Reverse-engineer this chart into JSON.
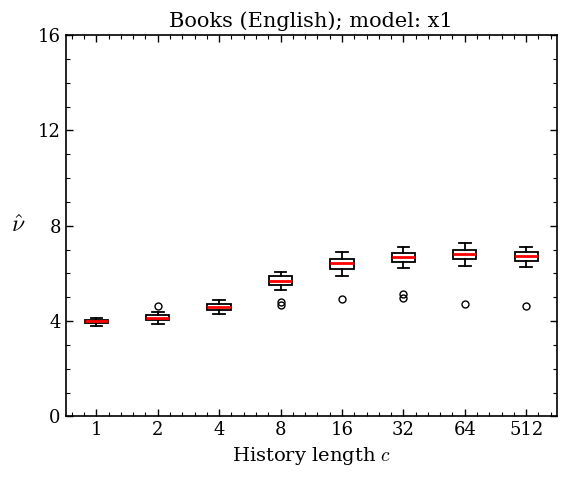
{
  "title": "Books (English); model: x1",
  "xlabel": "History length $c$",
  "ylabel": "$\\hat{\\nu}$",
  "x_positions": [
    1,
    2,
    3,
    4,
    5,
    6,
    7,
    8
  ],
  "x_labels": [
    "1",
    "2",
    "4",
    "8",
    "16",
    "32",
    "64",
    "512"
  ],
  "ylim": [
    0,
    16
  ],
  "yticks": [
    0,
    4,
    8,
    12,
    16
  ],
  "boxes": [
    {
      "q1": 3.93,
      "median": 3.99,
      "q3": 4.05,
      "whislo": 3.8,
      "whishi": 4.14,
      "fliers": []
    },
    {
      "q1": 4.05,
      "median": 4.15,
      "q3": 4.25,
      "whislo": 3.88,
      "whishi": 4.38,
      "fliers": [
        4.62
      ]
    },
    {
      "q1": 4.48,
      "median": 4.6,
      "q3": 4.72,
      "whislo": 4.28,
      "whishi": 4.88,
      "fliers": []
    },
    {
      "q1": 5.52,
      "median": 5.7,
      "q3": 5.88,
      "whislo": 5.3,
      "whishi": 6.05,
      "fliers": [
        4.68,
        4.82
      ]
    },
    {
      "q1": 6.18,
      "median": 6.42,
      "q3": 6.62,
      "whislo": 5.88,
      "whishi": 6.88,
      "fliers": [
        4.92
      ]
    },
    {
      "q1": 6.48,
      "median": 6.68,
      "q3": 6.85,
      "whislo": 6.22,
      "whishi": 7.1,
      "fliers": [
        4.98,
        5.12
      ]
    },
    {
      "q1": 6.62,
      "median": 6.82,
      "q3": 7.0,
      "whislo": 6.32,
      "whishi": 7.28,
      "fliers": [
        4.72
      ]
    },
    {
      "q1": 6.52,
      "median": 6.72,
      "q3": 6.88,
      "whislo": 6.28,
      "whishi": 7.12,
      "fliers": [
        4.62
      ]
    }
  ],
  "box_width": 0.38,
  "box_color": "white",
  "median_color": "red",
  "whisker_color": "black",
  "flier_marker": "o",
  "flier_color": "black",
  "flier_size": 5,
  "linewidth": 1.3,
  "median_linewidth": 2.0,
  "title_fontsize": 15,
  "label_fontsize": 14,
  "tick_fontsize": 13
}
